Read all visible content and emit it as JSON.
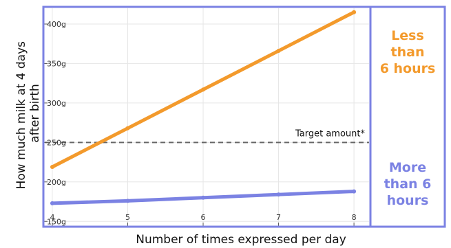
{
  "colors": {
    "orange": "#f39a2c",
    "blue": "#7b82e3",
    "frame": "#7b82e3",
    "target": "#666666",
    "grid": "#e6e6e6"
  },
  "chart_data": {
    "type": "line",
    "xlabel": "Number of times expressed per day",
    "ylabel_line1": "How much milk at 4 days",
    "ylabel_line2": "after birth",
    "x_ticks": [
      4,
      5,
      6,
      7,
      8
    ],
    "y_ticks": [
      150,
      200,
      250,
      300,
      350,
      400
    ],
    "y_tick_labels": [
      "150g",
      "200g",
      "250g",
      "300g",
      "350g",
      "400g"
    ],
    "xlim": [
      3.9,
      8.2
    ],
    "ylim": [
      145,
      420
    ],
    "grid": true,
    "series": [
      {
        "key": "less6",
        "x": [
          4,
          5,
          6,
          7,
          8
        ],
        "y": [
          219,
          268,
          317,
          366,
          415
        ],
        "color": "#f39a2c",
        "label_lines": [
          "Less",
          "than",
          "6 hours"
        ]
      },
      {
        "key": "more6",
        "x": [
          4,
          5,
          6,
          7,
          8
        ],
        "y": [
          173,
          176,
          180,
          184,
          188
        ],
        "color": "#7b82e3",
        "label_lines": [
          "More",
          "than 6",
          "hours"
        ]
      }
    ],
    "reference_line": {
      "y": 250,
      "label": "Target amount*",
      "style": "dashed"
    }
  }
}
